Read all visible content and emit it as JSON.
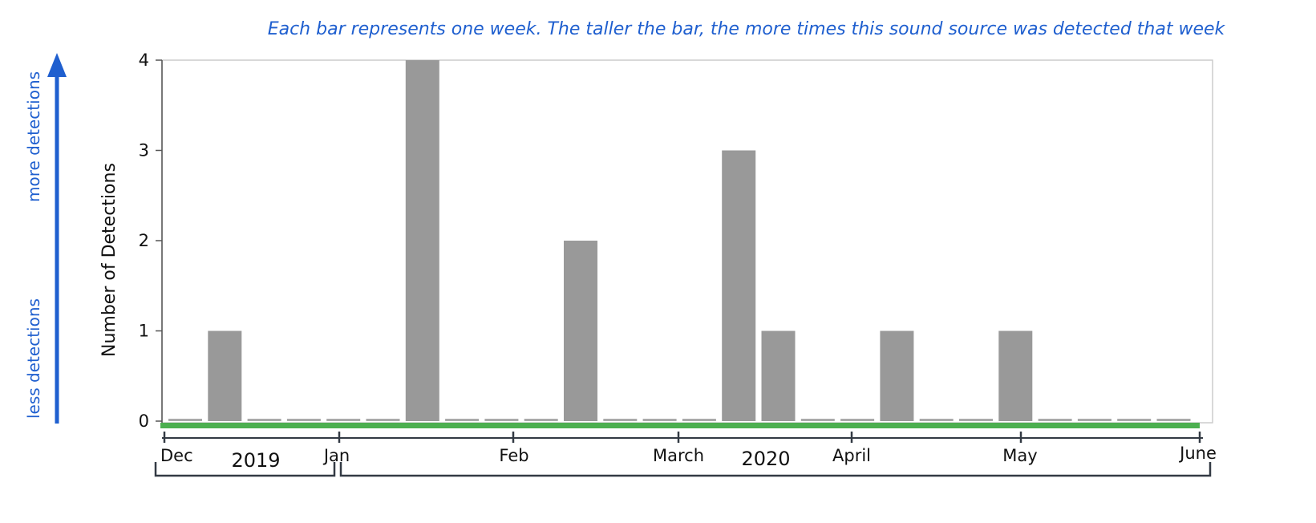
{
  "annotations": {
    "caption": "Each bar represents one week. The taller the bar, the more times this sound source was detected that week",
    "more_label": "more detections",
    "less_label": "less detections"
  },
  "colors": {
    "bar": "#999999",
    "timeline": "#4caf50",
    "annotation": "#1f5fcf",
    "frame": "#cccccc"
  },
  "chart_data": {
    "type": "bar",
    "ylabel": "Number of Detections",
    "ylim": [
      0,
      4
    ],
    "yticks": [
      0,
      1,
      2,
      3,
      4
    ],
    "grid": false,
    "values": [
      0,
      1,
      0,
      0,
      0,
      0,
      4,
      0,
      0,
      0,
      2,
      0,
      0,
      0,
      3,
      1,
      0,
      0,
      1,
      0,
      0,
      1,
      0,
      0,
      0,
      0
    ],
    "x_ticks": [
      "Dec",
      "Jan",
      "Feb",
      "March",
      "April",
      "May",
      "June"
    ],
    "years": [
      "2019",
      "2020"
    ]
  }
}
